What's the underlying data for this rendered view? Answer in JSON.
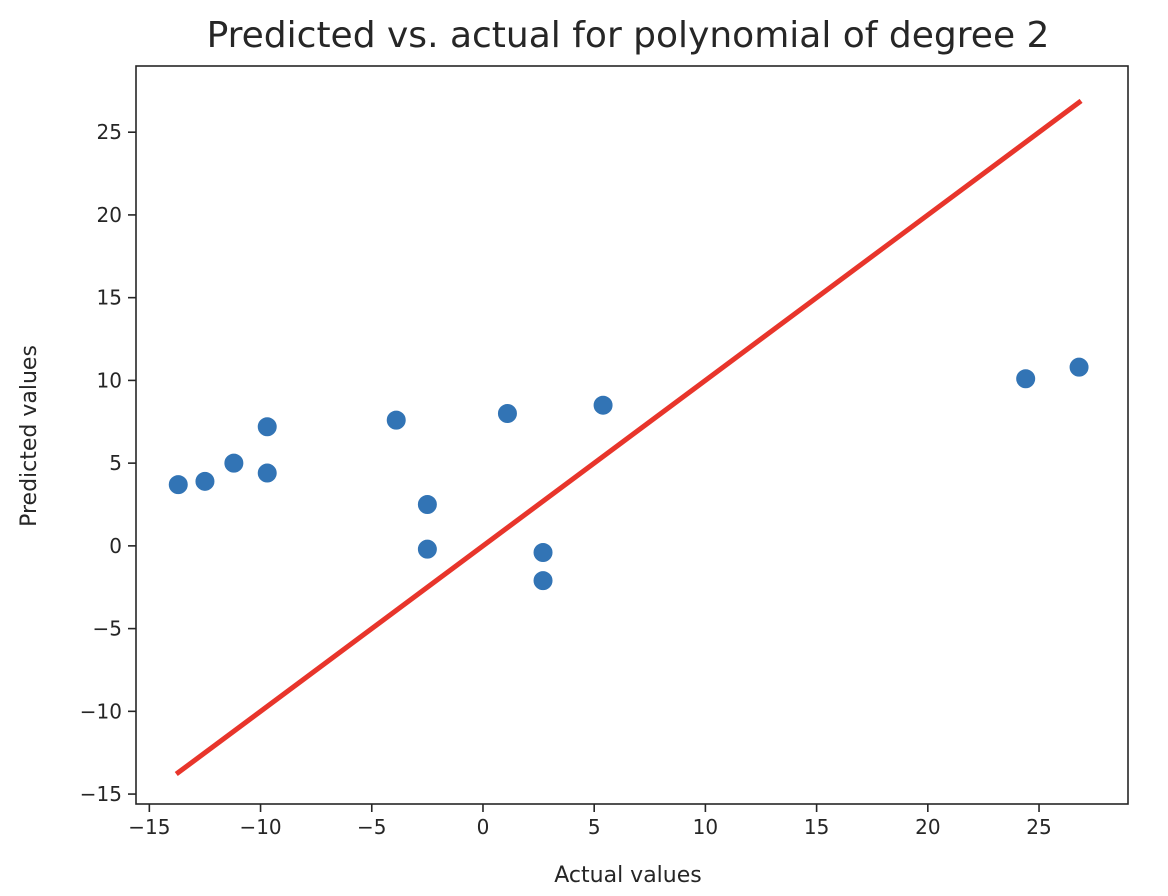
{
  "chart_data": {
    "type": "scatter",
    "title": "Predicted vs. actual for polynomial of degree 2",
    "xlabel": "Actual values",
    "ylabel": "Predicted values",
    "xlim": [
      -15.6,
      29.0
    ],
    "ylim": [
      -15.6,
      29.0
    ],
    "grid": false,
    "x_ticks": [
      -15,
      -10,
      -5,
      0,
      5,
      10,
      15,
      20,
      25
    ],
    "y_ticks": [
      -15,
      -10,
      -5,
      0,
      5,
      10,
      15,
      20,
      25
    ],
    "x_tick_labels": [
      "−15",
      "−10",
      "−5",
      "0",
      "5",
      "10",
      "15",
      "20",
      "25"
    ],
    "y_tick_labels": [
      "−15",
      "−10",
      "−5",
      "0",
      "5",
      "10",
      "15",
      "20",
      "25"
    ],
    "series": [
      {
        "name": "predictions",
        "kind": "scatter",
        "color": "#3274b5",
        "points": [
          {
            "x": -13.7,
            "y": 3.7
          },
          {
            "x": -12.5,
            "y": 3.9
          },
          {
            "x": -11.2,
            "y": 5.0
          },
          {
            "x": -9.7,
            "y": 7.2
          },
          {
            "x": -9.7,
            "y": 4.4
          },
          {
            "x": -3.9,
            "y": 7.6
          },
          {
            "x": -2.5,
            "y": 2.5
          },
          {
            "x": -2.5,
            "y": -0.2
          },
          {
            "x": 1.1,
            "y": 8.0
          },
          {
            "x": 2.7,
            "y": -0.4
          },
          {
            "x": 2.7,
            "y": -2.1
          },
          {
            "x": 5.4,
            "y": 8.5
          },
          {
            "x": 24.4,
            "y": 10.1
          },
          {
            "x": 26.8,
            "y": 10.8
          }
        ]
      },
      {
        "name": "identity",
        "kind": "line",
        "color": "#e8352b",
        "points": [
          {
            "x": -13.7,
            "y": -13.7
          },
          {
            "x": 26.8,
            "y": 26.8
          }
        ]
      }
    ]
  }
}
